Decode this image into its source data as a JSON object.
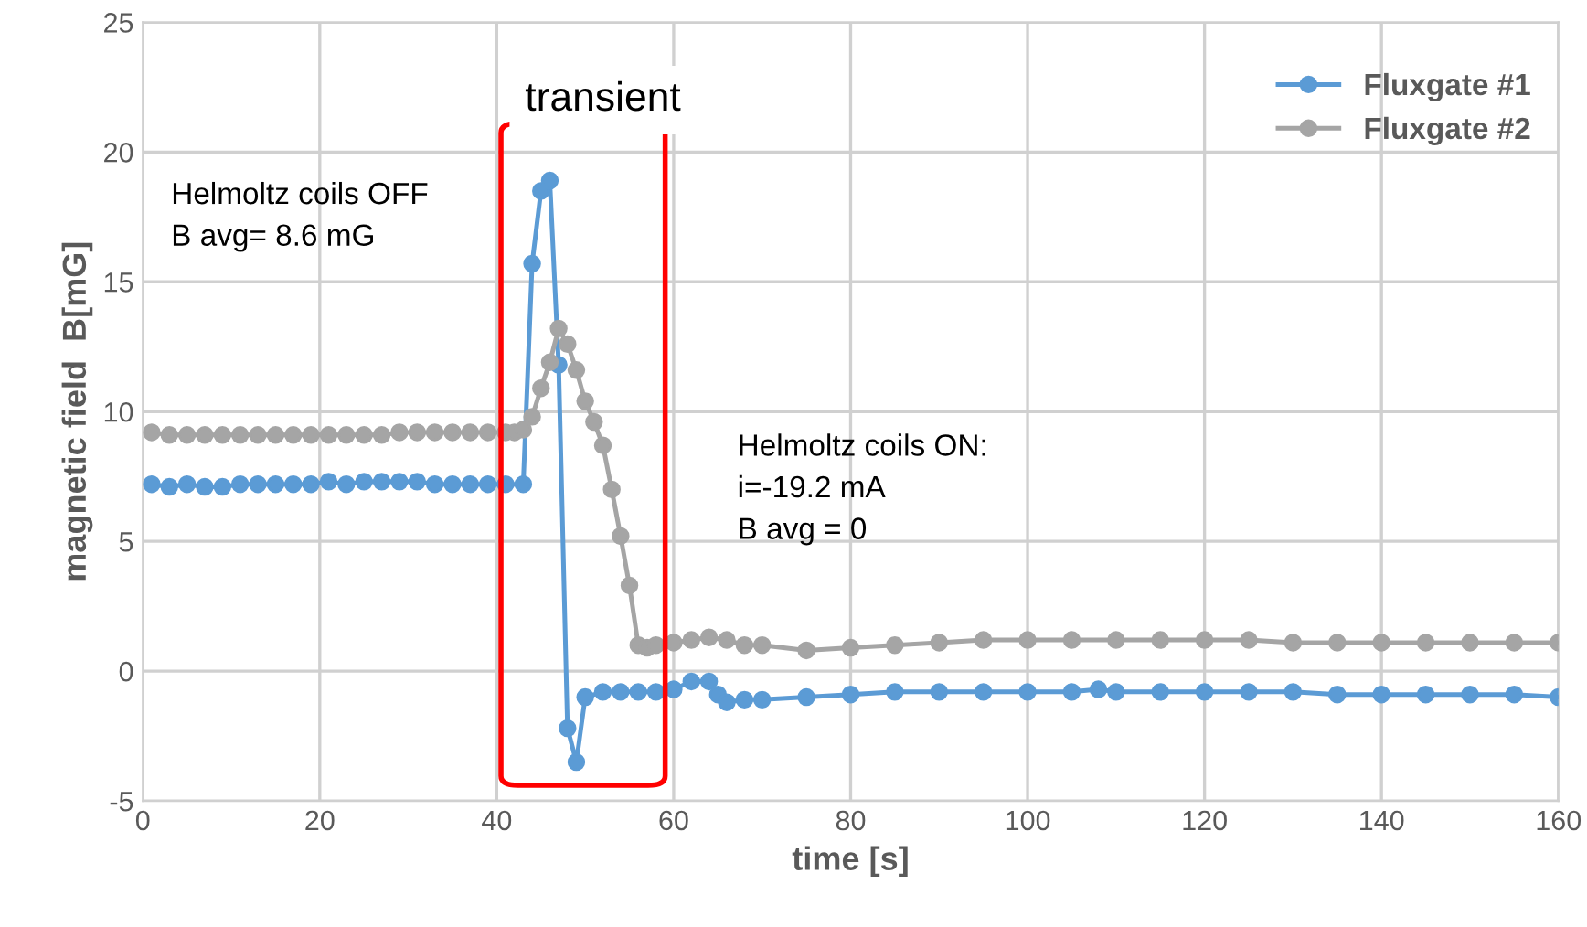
{
  "chart_data": {
    "type": "line",
    "xlabel": "time [s]",
    "ylabel": "magnetic field  B[mG]",
    "xlim": [
      0,
      160
    ],
    "xticks": [
      0,
      20,
      40,
      60,
      80,
      100,
      120,
      140,
      160
    ],
    "ylim": [
      -5,
      25
    ],
    "yticks": [
      -5,
      0,
      5,
      10,
      15,
      20,
      25
    ],
    "grid": true,
    "legend": "top right",
    "marker": "circle",
    "line_style": "solid",
    "series": [
      {
        "name": "Fluxgate #1",
        "color": "#5b9bd5",
        "x": [
          1,
          3,
          5,
          7,
          9,
          11,
          13,
          15,
          17,
          19,
          21,
          23,
          25,
          27,
          29,
          31,
          33,
          35,
          37,
          39,
          41,
          43,
          44,
          45,
          46,
          47,
          48,
          49,
          50,
          52,
          54,
          56,
          58,
          60,
          62,
          64,
          65,
          66,
          68,
          70,
          75,
          80,
          85,
          90,
          95,
          100,
          105,
          108,
          110,
          115,
          120,
          125,
          130,
          135,
          140,
          145,
          150,
          155,
          160
        ],
        "values": [
          7.2,
          7.1,
          7.2,
          7.1,
          7.1,
          7.2,
          7.2,
          7.2,
          7.2,
          7.2,
          7.3,
          7.2,
          7.3,
          7.3,
          7.3,
          7.3,
          7.2,
          7.2,
          7.2,
          7.2,
          7.2,
          7.2,
          15.7,
          18.5,
          18.9,
          11.8,
          -2.2,
          -3.5,
          -1.0,
          -0.8,
          -0.8,
          -0.8,
          -0.8,
          -0.7,
          -0.4,
          -0.4,
          -0.9,
          -1.2,
          -1.1,
          -1.1,
          -1.0,
          -0.9,
          -0.8,
          -0.8,
          -0.8,
          -0.8,
          -0.8,
          -0.7,
          -0.8,
          -0.8,
          -0.8,
          -0.8,
          -0.8,
          -0.9,
          -0.9,
          -0.9,
          -0.9,
          -0.9,
          -1.0
        ]
      },
      {
        "name": "Fluxgate #2",
        "color": "#a5a5a5",
        "x": [
          1,
          3,
          5,
          7,
          9,
          11,
          13,
          15,
          17,
          19,
          21,
          23,
          25,
          27,
          29,
          31,
          33,
          35,
          37,
          39,
          41,
          42,
          43,
          44,
          45,
          46,
          47,
          48,
          49,
          50,
          51,
          52,
          53,
          54,
          55,
          56,
          57,
          58,
          60,
          62,
          64,
          66,
          68,
          70,
          75,
          80,
          85,
          90,
          95,
          100,
          105,
          110,
          115,
          120,
          125,
          130,
          135,
          140,
          145,
          150,
          155,
          160
        ],
        "values": [
          9.2,
          9.1,
          9.1,
          9.1,
          9.1,
          9.1,
          9.1,
          9.1,
          9.1,
          9.1,
          9.1,
          9.1,
          9.1,
          9.1,
          9.2,
          9.2,
          9.2,
          9.2,
          9.2,
          9.2,
          9.2,
          9.2,
          9.3,
          9.8,
          10.9,
          11.9,
          13.2,
          12.6,
          11.6,
          10.4,
          9.6,
          8.7,
          7.0,
          5.2,
          3.3,
          1.0,
          0.9,
          1.0,
          1.1,
          1.2,
          1.3,
          1.2,
          1.0,
          1.0,
          0.8,
          0.9,
          1.0,
          1.1,
          1.2,
          1.2,
          1.2,
          1.2,
          1.2,
          1.2,
          1.2,
          1.1,
          1.1,
          1.1,
          1.1,
          1.1,
          1.1,
          1.1
        ]
      }
    ],
    "annotations": [
      "Helmoltz coils OFF\nB avg= 8.6 mG",
      "Helmoltz coils ON:\ni=-19.2 mA\nB avg = 0",
      "transient"
    ]
  }
}
